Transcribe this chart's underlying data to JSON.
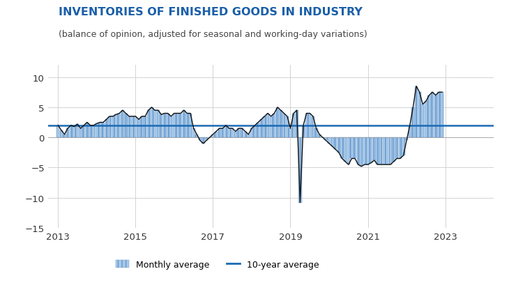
{
  "title": "INVENTORIES OF FINISHED GOODS IN INDUSTRY",
  "subtitle": "(balance of opinion, adjusted for seasonal and working-day variations)",
  "ten_year_avg": 2.0,
  "ylim": [
    -15,
    12
  ],
  "yticks": [
    -15,
    -10,
    -5,
    0,
    5,
    10
  ],
  "xlim_start": 2012.75,
  "xlim_end": 2024.25,
  "xtick_labels": [
    "2013",
    "2015",
    "2017",
    "2019",
    "2021",
    "2023"
  ],
  "xtick_positions": [
    2013,
    2015,
    2017,
    2019,
    2021,
    2023
  ],
  "bar_color": "#a8c8e8",
  "bar_edge_color": "#6699cc",
  "line_color": "#111111",
  "avg_line_color": "#1a6bb5",
  "title_color": "#1a5fa8",
  "subtitle_color": "#444444",
  "monthly_values": [
    2.0,
    1.2,
    0.5,
    1.5,
    2.0,
    1.8,
    2.2,
    1.5,
    2.0,
    2.5,
    2.0,
    2.0,
    2.3,
    2.5,
    2.5,
    3.0,
    3.5,
    3.5,
    3.8,
    4.0,
    4.5,
    4.0,
    3.5,
    3.5,
    3.5,
    3.0,
    3.5,
    3.5,
    4.5,
    5.0,
    4.5,
    4.5,
    3.8,
    4.0,
    4.0,
    3.5,
    4.0,
    4.0,
    4.0,
    4.5,
    4.0,
    4.0,
    1.5,
    0.5,
    -0.5,
    -1.0,
    -0.5,
    0.0,
    0.5,
    1.0,
    1.5,
    1.5,
    2.0,
    1.5,
    1.5,
    1.0,
    1.5,
    1.5,
    1.0,
    0.5,
    1.5,
    2.0,
    2.5,
    3.0,
    3.5,
    4.0,
    3.5,
    4.0,
    5.0,
    4.5,
    4.0,
    3.5,
    1.5,
    4.0,
    4.5,
    -10.8,
    2.0,
    4.0,
    4.0,
    3.5,
    1.5,
    0.5,
    0.0,
    -0.5,
    -1.0,
    -1.5,
    -2.0,
    -2.5,
    -3.5,
    -4.0,
    -4.5,
    -3.5,
    -3.5,
    -4.5,
    -4.8,
    -4.5,
    -4.5,
    -4.2,
    -3.8,
    -4.5,
    -4.5,
    -4.5,
    -4.5,
    -4.5,
    -4.0,
    -3.5,
    -3.5,
    -3.0,
    -0.5,
    2.0,
    5.0,
    8.5,
    7.5,
    5.5,
    6.0,
    7.0,
    7.5,
    7.0,
    7.5,
    7.5
  ]
}
